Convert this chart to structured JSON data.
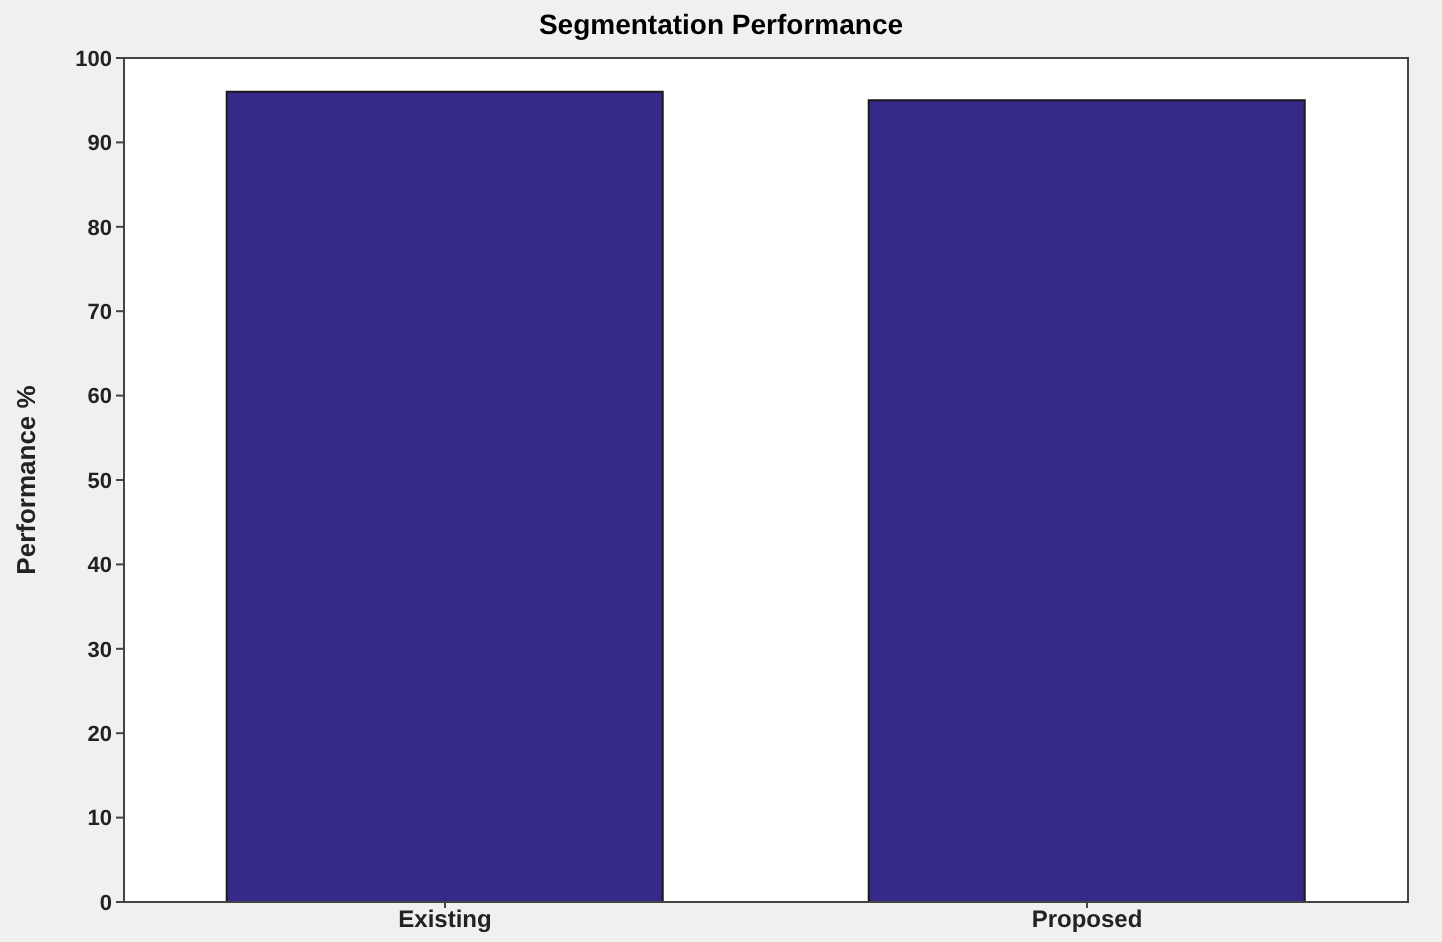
{
  "chart_data": {
    "type": "bar",
    "title": "Segmentation Performance",
    "ylabel": "Performance %",
    "categories": [
      "Existing",
      "Proposed"
    ],
    "values": [
      96,
      95
    ],
    "color": "#352a87",
    "ylim": [
      0,
      100
    ],
    "yticks": [
      0,
      10,
      20,
      30,
      40,
      50,
      60,
      70,
      80,
      90,
      100
    ]
  }
}
